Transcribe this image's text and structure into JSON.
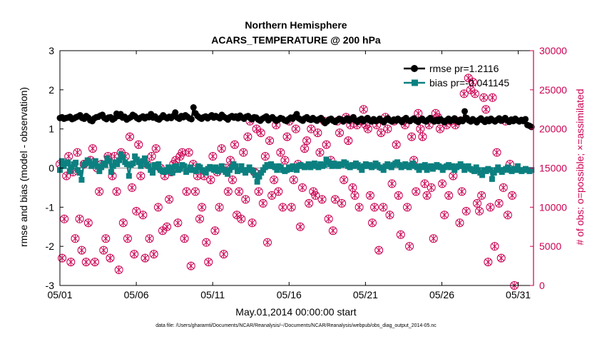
{
  "chart_data": {
    "type": "line",
    "title_line1": "Northern Hemisphere",
    "title_line2": "ACARS_TEMPERATURE @ 200 hPa",
    "xlabel": "May.01,2014 00:00:00 start",
    "ylabel_left": "rmse and bias (model - observation)",
    "ylabel_right": "# of obs: o=possible; ×=assimilated",
    "footer": "data file: /Users/gharamti/Documents/NCAR/Reanalysis/~/Documents/NCAR/Reanalysis/webpub/obs_diag_output_2014-05.nc",
    "xlim": [
      1,
      32
    ],
    "ylim_left": [
      -3,
      3
    ],
    "ylim_right": [
      0,
      30000
    ],
    "x_ticks": [
      1,
      6,
      11,
      16,
      21,
      26,
      31
    ],
    "x_tick_labels": [
      "05/01",
      "05/06",
      "05/11",
      "05/16",
      "05/21",
      "05/26",
      "05/31"
    ],
    "y_left_ticks": [
      -3,
      -2,
      -1,
      0,
      1,
      2,
      3
    ],
    "y_left_tick_labels": [
      "-3",
      "-2",
      "-1",
      "0",
      "1",
      "2",
      "3"
    ],
    "y_right_ticks": [
      0,
      5000,
      10000,
      15000,
      20000,
      25000,
      30000
    ],
    "y_right_tick_labels": [
      "0",
      "5000",
      "10000",
      "15000",
      "20000",
      "25000",
      "30000"
    ],
    "legend_position": "top-right",
    "colors": {
      "rmse": "#000000",
      "bias": "#0c8080",
      "obs": "#cc0052",
      "zero_line": "#bbbbbb",
      "axis": "#000000"
    },
    "series": [
      {
        "name": "rmse",
        "legend": "rmse pr=1.2116",
        "values": [
          1.28,
          1.3,
          1.26,
          1.28,
          1.29,
          1.31,
          1.25,
          1.27,
          1.3,
          1.32,
          1.35,
          1.28,
          1.26,
          1.33,
          1.29,
          1.22,
          1.2,
          1.27,
          1.3,
          1.31,
          1.34,
          1.36,
          1.28,
          1.25,
          1.29,
          1.3,
          1.24,
          1.27,
          1.39,
          1.33,
          1.38,
          1.29,
          1.31,
          1.24,
          1.27,
          1.3,
          1.36,
          1.33,
          1.28,
          1.25,
          1.29,
          1.32,
          1.27,
          1.31,
          1.3,
          1.38,
          1.29,
          1.32,
          1.26,
          1.24,
          1.29,
          1.35,
          1.3,
          1.27,
          1.31,
          1.28,
          1.33,
          1.42,
          1.29,
          1.26,
          1.33,
          1.3,
          1.35,
          1.31,
          1.27,
          1.25,
          1.55,
          1.4,
          1.33,
          1.29,
          1.26,
          1.3,
          1.32,
          1.27,
          1.31,
          1.35,
          1.29,
          1.33,
          1.3,
          1.27,
          1.36,
          1.31,
          1.28,
          1.24,
          1.3,
          1.33,
          1.29,
          1.32,
          1.27,
          1.34,
          1.29,
          1.26,
          1.31,
          1.33,
          1.28,
          1.25,
          1.3,
          1.29,
          1.24,
          1.21,
          1.26,
          1.29,
          1.32,
          1.22,
          1.27,
          1.3,
          1.25,
          1.21,
          1.24,
          1.28,
          1.26,
          1.22,
          1.2,
          1.25,
          1.29,
          1.26,
          1.31,
          1.38,
          1.27,
          1.24,
          1.21,
          1.27,
          1.3,
          1.25,
          1.23,
          1.28,
          1.24,
          1.21,
          1.25,
          1.28,
          1.22,
          1.15,
          1.19,
          1.24,
          1.26,
          1.21,
          1.18,
          1.22,
          1.26,
          1.24,
          1.19,
          1.23,
          1.27,
          1.21,
          1.25,
          1.3,
          1.22,
          1.18,
          1.23,
          1.26,
          1.2,
          1.24,
          1.28,
          1.22,
          1.19,
          1.25,
          1.2,
          1.22,
          1.26,
          1.21,
          1.17,
          1.23,
          1.27,
          1.22,
          1.19,
          1.24,
          1.21,
          1.26,
          1.22,
          1.18,
          1.24,
          1.28,
          1.22,
          1.2,
          1.24,
          1.27,
          1.21,
          1.18,
          1.23,
          1.26,
          1.21,
          1.19,
          1.24,
          1.28,
          1.22,
          1.19,
          1.23,
          1.2,
          1.25,
          1.21,
          1.17,
          1.22,
          1.26,
          1.2,
          1.23,
          1.27,
          1.21,
          1.18,
          1.24,
          1.2,
          1.45,
          1.28,
          1.22,
          1.19,
          1.25,
          1.21,
          1.17,
          1.23,
          1.27,
          1.22,
          1.18,
          1.24,
          1.2,
          1.26,
          1.22,
          1.19,
          1.23,
          1.27,
          1.21,
          1.24,
          1.28,
          1.22,
          1.18,
          1.24,
          1.2,
          1.26,
          1.22,
          1.19,
          1.23,
          1.2,
          1.25,
          1.1,
          1.08,
          1.05
        ]
      },
      {
        "name": "bias",
        "legend": "bias pr=-0.041145",
        "values": [
          -0.05,
          0.18,
          0.05,
          0.12,
          0.15,
          -0.08,
          0.02,
          0.1,
          0.14,
          -0.05,
          -0.12,
          -0.3,
          0.08,
          0.12,
          0.2,
          0.15,
          0.05,
          0.1,
          0.18,
          0.05,
          -0.08,
          0.02,
          0.12,
          0.08,
          0.25,
          0.18,
          -0.1,
          0.05,
          0.15,
          0.1,
          0.2,
          0.35,
          0.28,
          0.15,
          0.1,
          -0.2,
          0.08,
          0.12,
          0.3,
          0.22,
          0.15,
          0.05,
          0.18,
          0.25,
          0.1,
          0.05,
          -0.05,
          -0.12,
          0.08,
          0.02,
          0.1,
          -0.05,
          -0.08,
          -0.1,
          -0.05,
          0.02,
          -0.08,
          -0.12,
          0.03,
          0.05,
          -0.05,
          -0.02,
          0.08,
          0.05,
          -0.1,
          -0.05,
          0.02,
          -0.05,
          -0.05,
          -0.08,
          0.05,
          0.02,
          -0.05,
          -0.08,
          -0.12,
          -0.02,
          0.03,
          0.0,
          -0.05,
          0.02,
          -0.08,
          -0.03,
          0.05,
          -0.05,
          -0.1,
          -0.15,
          -0.05,
          0.02,
          0.1,
          0.05,
          -0.08,
          -0.05,
          0.05,
          -0.05,
          -0.12,
          -0.05,
          0.02,
          -0.05,
          -0.08,
          -0.18,
          -0.35,
          -0.22,
          -0.12,
          -0.05,
          0.02,
          0.08,
          0.05,
          0.1,
          0.05,
          0.02,
          -0.05,
          0.05,
          0.02,
          -0.05,
          -0.08,
          -0.05,
          0.02,
          -0.03,
          0.05,
          0.02,
          -0.05,
          0.05,
          0.08,
          0.05,
          0.02,
          0.05,
          0.1,
          0.02,
          0.08,
          0.12,
          0.05,
          0.02,
          0.1,
          0.05,
          0.08,
          0.22,
          0.15,
          0.1,
          0.05,
          0.12,
          0.08,
          0.05,
          0.1,
          0.08,
          0.15,
          0.12,
          0.05,
          0.02,
          0.08,
          0.05,
          0.12,
          0.08,
          0.02,
          -0.05,
          0.05,
          0.1,
          0.05,
          0.08,
          0.02,
          0.05,
          0.12,
          0.08,
          0.02,
          0.0,
          -0.05,
          0.05,
          0.1,
          0.05,
          0.02,
          0.08,
          0.12,
          0.15,
          0.08,
          0.02,
          0.05,
          0.1,
          0.05,
          0.02,
          0.08,
          0.12,
          0.05,
          0.02,
          -0.05,
          0.05,
          0.02,
          0.08,
          -0.05,
          0.02,
          0.05,
          -0.02,
          0.03,
          0.08,
          0.05,
          0.02,
          -0.05,
          0.02,
          0.05,
          0.08,
          0.02,
          0.05,
          -0.05,
          0.02,
          0.05,
          0.1,
          0.05,
          -0.05,
          0.02,
          0.05,
          -0.02,
          -0.05,
          -0.08,
          0.02,
          -0.05,
          -0.12,
          -0.18,
          -0.05,
          -0.08,
          -0.02,
          -0.05,
          -0.28,
          -0.12,
          -0.05,
          0.02,
          -0.05,
          -0.1,
          -0.05,
          -0.02,
          0.02,
          -0.05,
          -0.08,
          -0.02,
          -0.05,
          0.05,
          -0.05,
          -0.08,
          -0.05,
          -0.02,
          -0.05,
          -0.08,
          -0.05
        ]
      },
      {
        "name": "obs_possible",
        "values": [
          15500,
          3500,
          8500,
          14000,
          16500,
          3000,
          14500,
          6000,
          17000,
          8500,
          4500,
          15500,
          3000,
          8000,
          16000,
          17500,
          3000,
          15000,
          12000,
          15500,
          4500,
          6000,
          16500,
          3500,
          14000,
          16500,
          12000,
          2000,
          17000,
          8000,
          16500,
          6000,
          19000,
          12500,
          4000,
          9500,
          18000,
          14000,
          9000,
          3500,
          15500,
          6000,
          16500,
          4000,
          17500,
          10000,
          15000,
          7000,
          14000,
          7500,
          11000,
          14500,
          15500,
          16000,
          8000,
          16500,
          17000,
          6000,
          12000,
          17000,
          2500,
          15500,
          12000,
          14000,
          8500,
          10000,
          14000,
          5500,
          3000,
          13500,
          16500,
          7000,
          14500,
          10000,
          17500,
          4000,
          15000,
          12000,
          16000,
          13500,
          18000,
          9000,
          12000,
          8500,
          17000,
          11000,
          19000,
          21000,
          8000,
          14500,
          20000,
          12000,
          19500,
          10500,
          16500,
          5500,
          18500,
          11500,
          13500,
          20500,
          12000,
          17000,
          10000,
          16000,
          19000,
          21000,
          10000,
          13500,
          20000,
          15500,
          7500,
          12500,
          17500,
          18500,
          10500,
          20000,
          12000,
          11500,
          19500,
          17000,
          11000,
          21000,
          18000,
          8500,
          16000,
          7000,
          11000,
          21000,
          19500,
          10500,
          13500,
          21500,
          18500,
          20500,
          12500,
          11500,
          20500,
          10000,
          21000,
          22500,
          20500,
          20000,
          11500,
          8000,
          10000,
          20500,
          4500,
          19500,
          10000,
          21500,
          20000,
          9000,
          13000,
          21000,
          18000,
          11500,
          6500,
          21000,
          20500,
          10000,
          5000,
          19000,
          16000,
          12000,
          22000,
          20000,
          19000,
          13000,
          11500,
          20500,
          12500,
          6000,
          22000,
          21500,
          20000,
          13000,
          9000,
          20500,
          11500,
          21000,
          14000,
          20500,
          21000,
          8000,
          12000,
          24500,
          9500,
          26500,
          25000,
          26000,
          24500,
          10500,
          9500,
          11500,
          24000,
          22500,
          3000,
          10000,
          24000,
          5000,
          17000,
          10500,
          3500,
          12500,
          21000,
          9000,
          15500,
          11500,
          0
        ],
        "x_step": 0.143
      },
      {
        "name": "obs_assimilated",
        "values_ref": "obs_possible"
      }
    ]
  }
}
